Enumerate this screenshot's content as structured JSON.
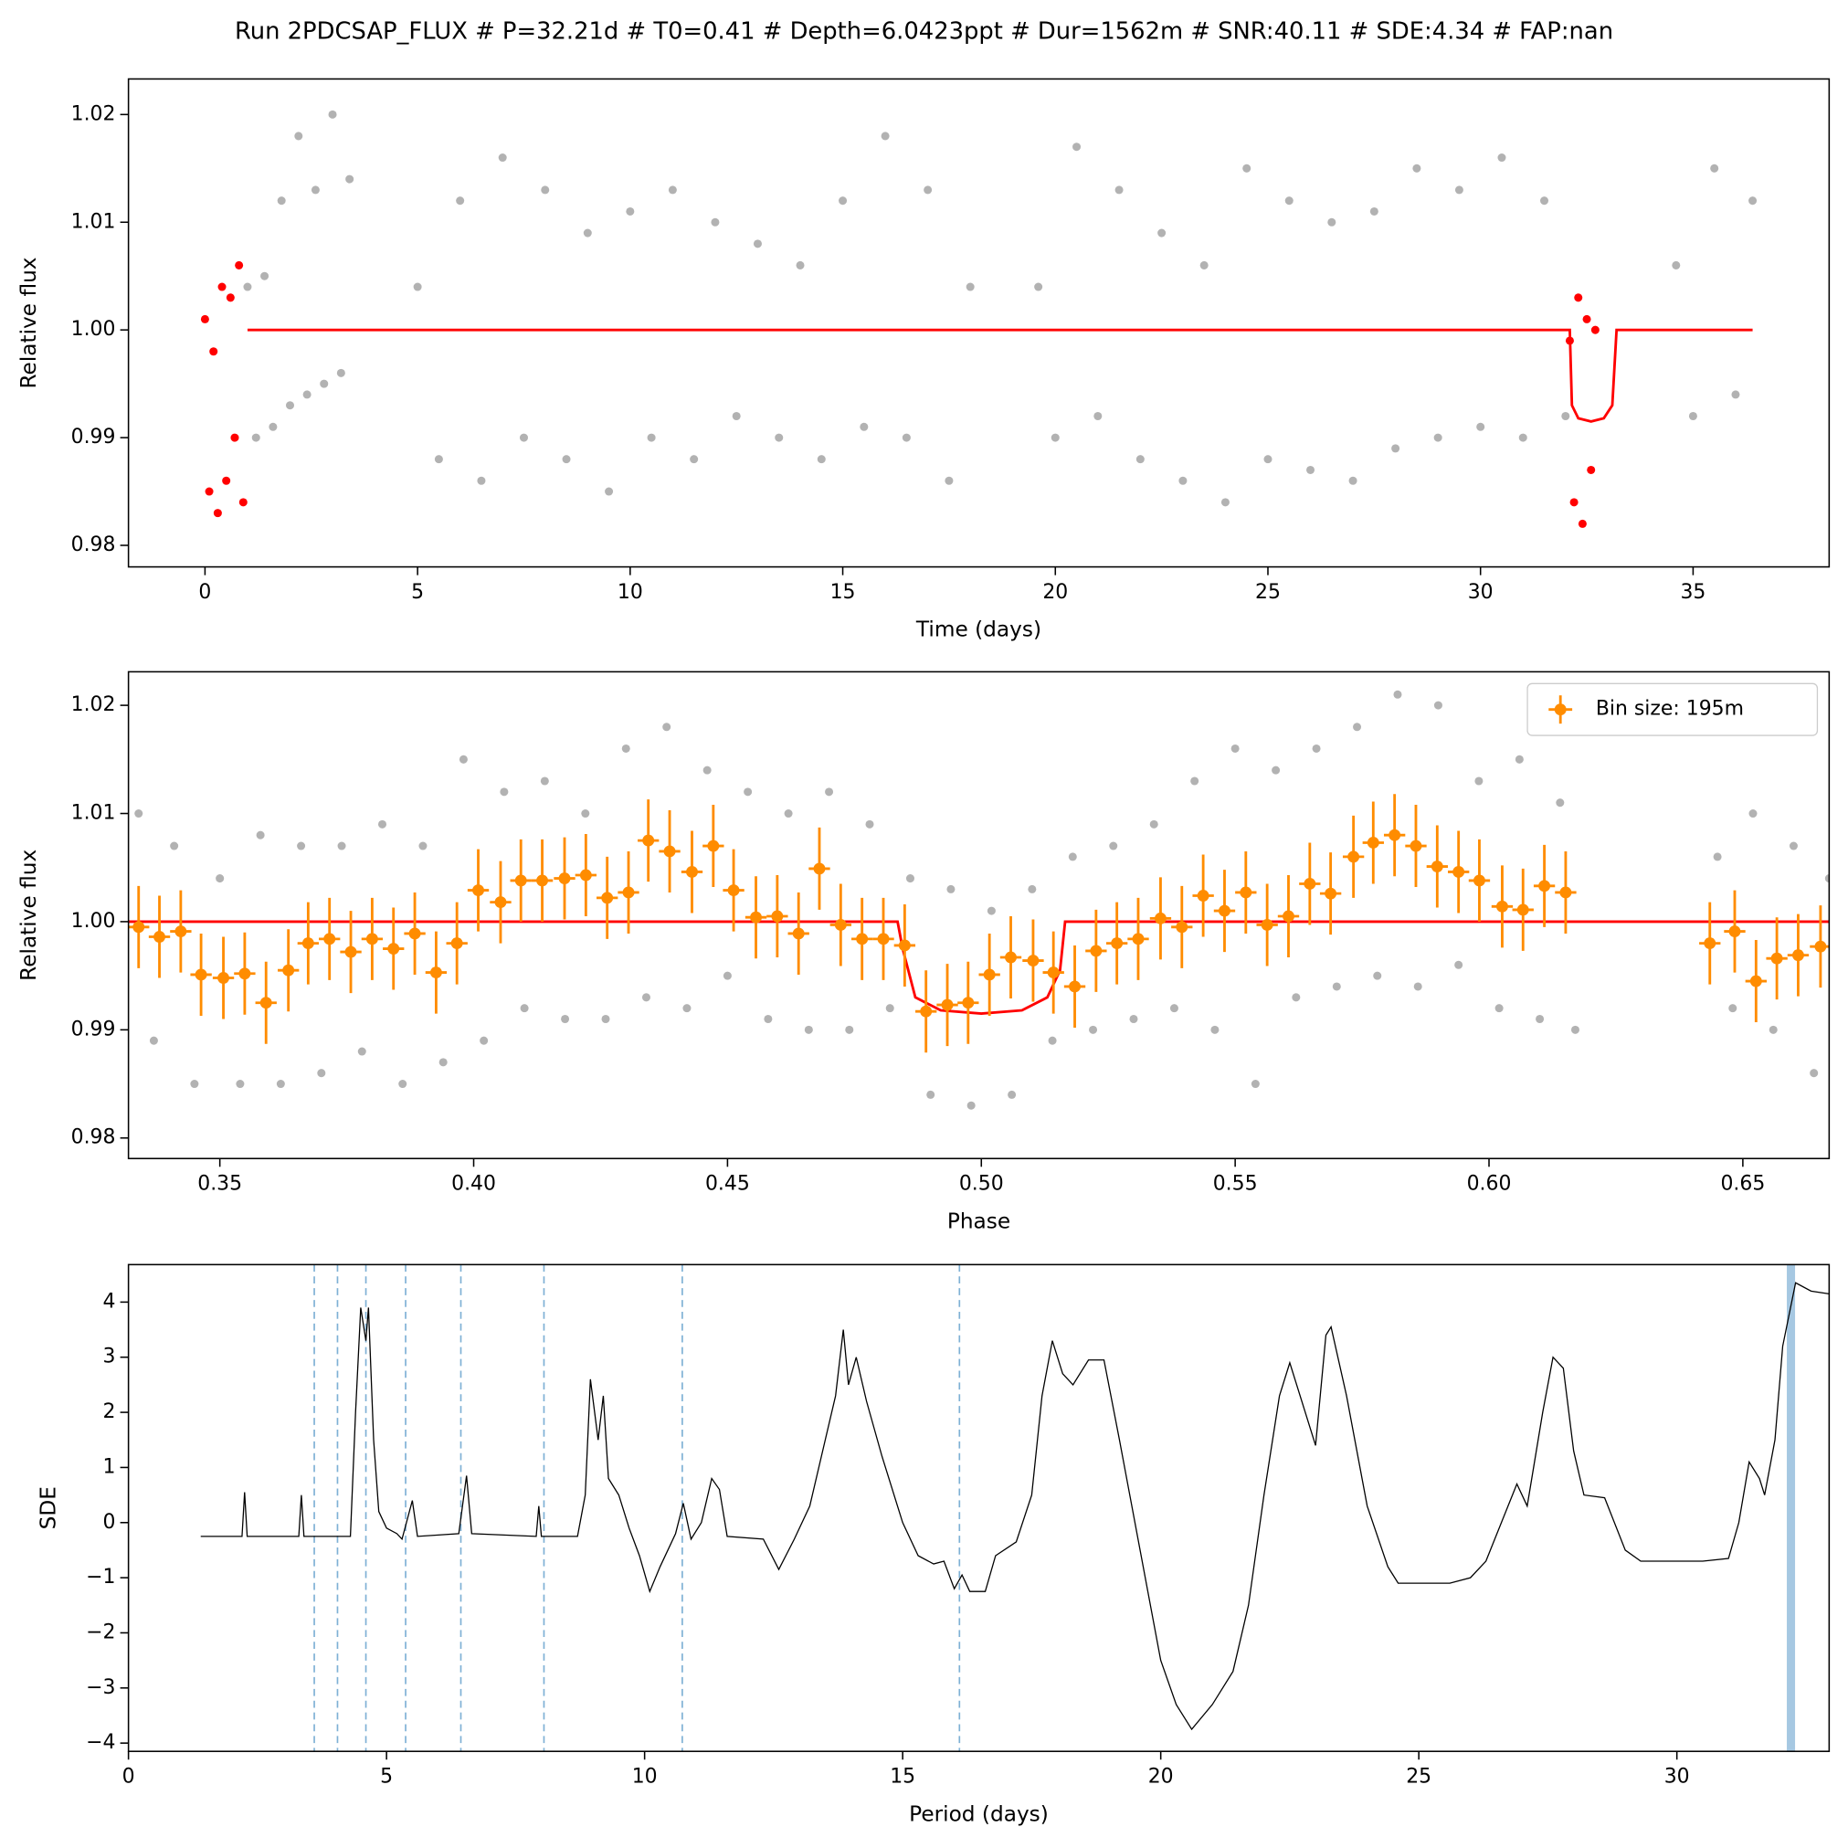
{
  "title": "Run 2PDCSAP_FLUX # P=32.21d # T0=0.41 # Depth=6.0423ppt # Dur=1562m # SNR:40.11 # SDE:4.34 # FAP:nan",
  "chart_data": [
    {
      "type": "scatter",
      "xlabel": "Time (days)",
      "ylabel": "Relative flux",
      "xlim": [
        -1.8,
        38.2
      ],
      "ylim": [
        0.978,
        1.0233
      ],
      "xticks": [
        0,
        5,
        10,
        15,
        20,
        25,
        30,
        35
      ],
      "yticks": [
        0.98,
        0.99,
        {
          "value": 1,
          "label": "1.00"
        },
        1.01,
        1.02
      ],
      "series": [
        {
          "kind": "scatter",
          "color": "#000000",
          "alpha": 0.3,
          "x": [
            1.0,
            1.2,
            1.4,
            1.6,
            1.8,
            2.0,
            2.2,
            2.4,
            2.6,
            2.8,
            3.0,
            3.2,
            3.4,
            5.0,
            5.5,
            6.0,
            6.5,
            7.0,
            7.5,
            8.0,
            8.5,
            9.0,
            9.5,
            10.0,
            10.5,
            11.0,
            11.5,
            12.0,
            12.5,
            13.0,
            13.5,
            14.0,
            14.5,
            15.0,
            15.5,
            16.0,
            16.5,
            17.0,
            17.5,
            18.0,
            19.6,
            20.0,
            20.5,
            21.0,
            21.5,
            22.0,
            22.5,
            23.0,
            23.5,
            24.0,
            24.5,
            25.0,
            25.5,
            26.0,
            26.5,
            27.0,
            27.5,
            28.0,
            28.5,
            29.0,
            29.5,
            30.0,
            30.5,
            31.0,
            31.5,
            32.0,
            34.6,
            35.0,
            35.5,
            36.0,
            36.4
          ],
          "values": [
            1.004,
            0.99,
            1.005,
            0.991,
            1.012,
            0.993,
            1.018,
            0.994,
            1.013,
            0.995,
            1.02,
            0.996,
            1.014,
            1.004,
            0.988,
            1.012,
            0.986,
            1.016,
            0.99,
            1.013,
            0.988,
            1.009,
            0.985,
            1.011,
            0.99,
            1.013,
            0.988,
            1.01,
            0.992,
            1.008,
            0.99,
            1.006,
            0.988,
            1.012,
            0.991,
            1.018,
            0.99,
            1.013,
            0.986,
            1.004,
            1.004,
            0.99,
            1.017,
            0.992,
            1.013,
            0.988,
            1.009,
            0.986,
            1.006,
            0.984,
            1.015,
            0.988,
            1.012,
            0.987,
            1.01,
            0.986,
            1.011,
            0.989,
            1.015,
            0.99,
            1.013,
            0.991,
            1.016,
            0.99,
            1.012,
            0.992,
            1.006,
            0.992,
            1.015,
            0.994,
            1.012
          ]
        },
        {
          "kind": "scatter",
          "color": "#ff0000",
          "alpha": 1,
          "x": [
            0.0,
            0.1,
            0.2,
            0.3,
            0.4,
            0.5,
            0.6,
            0.7,
            0.8,
            0.9,
            32.1,
            32.2,
            32.3,
            32.4,
            32.5,
            32.6,
            32.7
          ],
          "values": [
            1.001,
            0.985,
            0.998,
            0.983,
            1.004,
            0.986,
            1.003,
            0.99,
            1.006,
            0.984,
            0.999,
            0.984,
            1.003,
            0.982,
            1.001,
            0.987,
            1.0
          ]
        },
        {
          "kind": "line",
          "color": "#ff0000",
          "x": [
            1.0,
            32.1,
            32.15,
            32.3,
            32.6,
            32.9,
            33.1,
            33.2,
            36.4
          ],
          "values": [
            1,
            1,
            0.993,
            0.9918,
            0.9915,
            0.9918,
            0.993,
            1,
            1
          ]
        }
      ]
    },
    {
      "type": "scatter",
      "xlabel": "Phase",
      "ylabel": "Relative flux",
      "xlim": [
        0.332,
        0.667
      ],
      "ylim": [
        0.9781,
        1.0231
      ],
      "xticks": [
        0.35,
        {
          "value": 0.4,
          "label": "0.40"
        },
        0.45,
        {
          "value": 0.5,
          "label": "0.50"
        },
        0.55,
        {
          "value": 0.6,
          "label": "0.60"
        },
        0.65
      ],
      "yticks": [
        0.98,
        0.99,
        {
          "value": 1,
          "label": "1.00"
        },
        1.01,
        1.02
      ],
      "legend": "upper right",
      "series": [
        {
          "kind": "scatter",
          "color": "#000000",
          "alpha": 0.3,
          "x": [
            0.334,
            0.337,
            0.341,
            0.345,
            0.35,
            0.354,
            0.358,
            0.362,
            0.366,
            0.37,
            0.374,
            0.378,
            0.382,
            0.386,
            0.39,
            0.394,
            0.398,
            0.402,
            0.406,
            0.41,
            0.414,
            0.418,
            0.422,
            0.426,
            0.43,
            0.434,
            0.438,
            0.442,
            0.446,
            0.45,
            0.454,
            0.458,
            0.462,
            0.466,
            0.47,
            0.474,
            0.478,
            0.482,
            0.486,
            0.49,
            0.494,
            0.498,
            0.502,
            0.506,
            0.51,
            0.514,
            0.518,
            0.522,
            0.526,
            0.53,
            0.534,
            0.538,
            0.542,
            0.546,
            0.55,
            0.554,
            0.558,
            0.562,
            0.566,
            0.57,
            0.574,
            0.578,
            0.582,
            0.586,
            0.59,
            0.594,
            0.598,
            0.602,
            0.606,
            0.61,
            0.614,
            0.617,
            0.645,
            0.648,
            0.652,
            0.656,
            0.66,
            0.664,
            0.667
          ],
          "values": [
            1.01,
            0.989,
            1.007,
            0.985,
            1.004,
            0.985,
            1.008,
            0.985,
            1.007,
            0.986,
            1.007,
            0.988,
            1.009,
            0.985,
            1.007,
            0.987,
            1.015,
            0.989,
            1.012,
            0.992,
            1.013,
            0.991,
            1.01,
            0.991,
            1.016,
            0.993,
            1.018,
            0.992,
            1.014,
            0.995,
            1.012,
            0.991,
            1.01,
            0.99,
            1.012,
            0.99,
            1.009,
            0.992,
            1.004,
            0.984,
            1.003,
            0.983,
            1.001,
            0.984,
            1.003,
            0.989,
            1.006,
            0.99,
            1.007,
            0.991,
            1.009,
            0.992,
            1.013,
            0.99,
            1.016,
            0.985,
            1.014,
            0.993,
            1.016,
            0.994,
            1.018,
            0.995,
            1.021,
            0.994,
            1.02,
            0.996,
            1.013,
            0.992,
            1.015,
            0.991,
            1.011,
            0.99,
            1.006,
            0.992,
            1.01,
            0.99,
            1.007,
            0.986,
            1.004
          ]
        },
        {
          "kind": "line",
          "color": "#ff0000",
          "x": [
            0.332,
            0.4835,
            0.4845,
            0.487,
            0.492,
            0.5,
            0.508,
            0.513,
            0.5155,
            0.5165,
            0.667
          ],
          "values": [
            1,
            1,
            0.9975,
            0.993,
            0.9918,
            0.9915,
            0.9918,
            0.993,
            0.9955,
            1,
            1
          ]
        },
        {
          "kind": "errorbar",
          "name": "Bin size: 195m",
          "color": "#ff8c00",
          "xerr": 0.0021,
          "yerr": 0.0038,
          "x": [
            0.334,
            0.3381,
            0.3423,
            0.3463,
            0.3507,
            0.3549,
            0.3591,
            0.3635,
            0.3674,
            0.3716,
            0.3758,
            0.38,
            0.3842,
            0.3884,
            0.3926,
            0.3967,
            0.4009,
            0.4053,
            0.4093,
            0.4135,
            0.4179,
            0.4221,
            0.4263,
            0.4305,
            0.4344,
            0.4386,
            0.443,
            0.4472,
            0.4512,
            0.4556,
            0.4598,
            0.464,
            0.4681,
            0.4723,
            0.4765,
            0.4807,
            0.4849,
            0.4891,
            0.4933,
            0.4974,
            0.5016,
            0.5058,
            0.5102,
            0.5142,
            0.5184,
            0.5226,
            0.5267,
            0.5309,
            0.5353,
            0.5395,
            0.5437,
            0.5479,
            0.5521,
            0.5563,
            0.5605,
            0.5647,
            0.5688,
            0.5733,
            0.5772,
            0.5814,
            0.5856,
            0.5898,
            0.594,
            0.5981,
            0.6026,
            0.6067,
            0.6109,
            0.6151,
            0.6435,
            0.6484,
            0.6526,
            0.6567,
            0.6609,
            0.6653
          ],
          "values": [
            0.9995,
            0.9986,
            0.9991,
            0.9951,
            0.9948,
            0.9952,
            0.9925,
            0.9955,
            0.998,
            0.9984,
            0.9972,
            0.9984,
            0.9975,
            0.9989,
            0.9953,
            0.998,
            1.0029,
            1.0018,
            1.0038,
            1.0038,
            1.004,
            1.0043,
            1.0022,
            1.0027,
            1.0075,
            1.0065,
            1.0046,
            1.007,
            1.0029,
            1.0004,
            1.0005,
            0.9989,
            1.0049,
            0.9997,
            0.9984,
            0.9984,
            0.9978,
            0.9917,
            0.9923,
            0.9925,
            0.9951,
            0.9967,
            0.9964,
            0.9953,
            0.994,
            0.9973,
            0.998,
            0.9984,
            1.0003,
            0.9995,
            1.0024,
            1.001,
            1.0027,
            0.9997,
            1.0005,
            1.0035,
            1.0026,
            1.006,
            1.0073,
            1.008,
            1.007,
            1.0051,
            1.0046,
            1.0038,
            1.0014,
            1.0011,
            1.0033,
            1.0027,
            0.998,
            0.9991,
            0.9945,
            0.9966,
            0.9969,
            0.9977
          ]
        }
      ]
    },
    {
      "type": "line",
      "xlabel": "Period (days)",
      "ylabel": "SDE",
      "xlim": [
        0,
        32.95
      ],
      "ylim": [
        -4.15,
        4.68
      ],
      "xticks": [
        0,
        5,
        10,
        15,
        20,
        25,
        30
      ],
      "yticks": [
        {
          "value": -4,
          "label": "−4"
        },
        {
          "value": -3,
          "label": "−3"
        },
        {
          "value": -2,
          "label": "−2"
        },
        {
          "value": -1,
          "label": "−1"
        },
        0,
        1,
        2,
        3,
        4
      ],
      "vlines": {
        "color": "#7eb0d5",
        "style": "dashed",
        "x": [
          3.6,
          4.05,
          4.6,
          5.37,
          6.44,
          8.05,
          10.73,
          16.1
        ]
      },
      "highlight": {
        "color": "#a6c8e2",
        "x": 32.21
      },
      "series": [
        {
          "kind": "line",
          "color": "#000000",
          "x": [
            1.4,
            2.2,
            2.25,
            2.3,
            3.3,
            3.35,
            3.4,
            4.3,
            4.4,
            4.5,
            4.6,
            4.65,
            4.75,
            4.85,
            5.0,
            5.2,
            5.3,
            5.5,
            5.6,
            6.4,
            6.55,
            6.65,
            7.9,
            7.95,
            8.0,
            8.7,
            8.85,
            8.95,
            9.1,
            9.2,
            9.3,
            9.5,
            9.7,
            9.9,
            10.1,
            10.3,
            10.6,
            10.75,
            10.9,
            11.1,
            11.3,
            11.45,
            11.6,
            12.3,
            12.6,
            12.9,
            13.2,
            13.5,
            13.7,
            13.85,
            13.95,
            14.1,
            14.3,
            14.6,
            15.0,
            15.3,
            15.6,
            15.8,
            16.0,
            16.15,
            16.3,
            16.6,
            16.8,
            17.2,
            17.5,
            17.7,
            17.9,
            18.1,
            18.3,
            18.6,
            18.9,
            19.2,
            19.6,
            20.0,
            20.3,
            20.6,
            21.0,
            21.4,
            21.7,
            22.0,
            22.3,
            22.5,
            22.8,
            23.0,
            23.2,
            23.3,
            23.6,
            24.0,
            24.4,
            24.6,
            25.0,
            25.6,
            26.0,
            26.3,
            26.6,
            26.9,
            27.1,
            27.4,
            27.6,
            27.8,
            28.0,
            28.2,
            28.6,
            29.0,
            29.3,
            30.0,
            30.5,
            31.0,
            31.2,
            31.4,
            31.6,
            31.7,
            31.9,
            32.05,
            32.3,
            32.6,
            32.95
          ],
          "values": [
            -0.25,
            -0.25,
            0.55,
            -0.25,
            -0.25,
            0.5,
            -0.25,
            -0.25,
            2.0,
            3.9,
            3.3,
            3.9,
            1.5,
            0.2,
            -0.1,
            -0.2,
            -0.3,
            0.4,
            -0.25,
            -0.2,
            0.85,
            -0.2,
            -0.25,
            0.3,
            -0.25,
            -0.25,
            0.5,
            2.6,
            1.5,
            2.3,
            0.8,
            0.5,
            -0.1,
            -0.6,
            -1.25,
            -0.8,
            -0.2,
            0.35,
            -0.3,
            0.0,
            0.8,
            0.6,
            -0.25,
            -0.3,
            -0.85,
            -0.3,
            0.3,
            1.5,
            2.3,
            3.5,
            2.5,
            3.0,
            2.2,
            1.2,
            0.0,
            -0.6,
            -0.75,
            -0.7,
            -1.2,
            -0.95,
            -1.25,
            -1.25,
            -0.6,
            -0.35,
            0.5,
            2.3,
            3.3,
            2.7,
            2.5,
            2.95,
            2.95,
            1.5,
            -0.5,
            -2.5,
            -3.3,
            -3.75,
            -3.3,
            -2.7,
            -1.5,
            0.5,
            2.3,
            2.9,
            2.0,
            1.4,
            3.4,
            3.55,
            2.3,
            0.3,
            -0.8,
            -1.1,
            -1.1,
            -1.1,
            -1.0,
            -0.7,
            0.0,
            0.7,
            0.3,
            2.0,
            3.0,
            2.8,
            1.3,
            0.5,
            0.45,
            -0.5,
            -0.7,
            -0.7,
            -0.7,
            -0.65,
            0.0,
            1.1,
            0.8,
            0.5,
            1.5,
            3.2,
            4.35,
            4.2,
            4.15
          ]
        }
      ]
    }
  ]
}
